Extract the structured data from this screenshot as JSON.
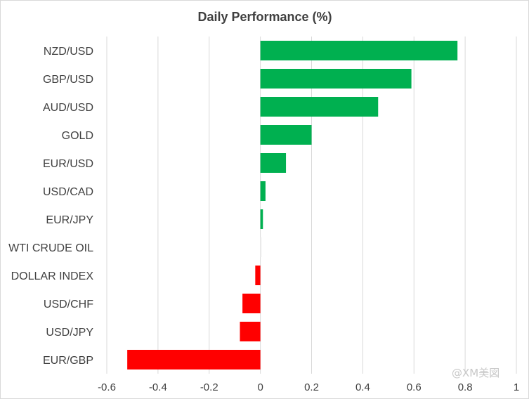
{
  "chart_data": {
    "type": "bar",
    "orientation": "horizontal",
    "title": "Daily Performance  (%)",
    "categories": [
      "NZD/USD",
      "GBP/USD",
      "AUD/USD",
      "GOLD",
      "EUR/USD",
      "USD/CAD",
      "EUR/JPY",
      "WTI CRUDE OIL",
      "DOLLAR INDEX",
      "USD/CHF",
      "USD/JPY",
      "EUR/GBP"
    ],
    "values": [
      0.77,
      0.59,
      0.46,
      0.2,
      0.1,
      0.02,
      0.01,
      0.005,
      -0.02,
      -0.07,
      -0.08,
      -0.52
    ],
    "xlim": [
      -0.6,
      1.0
    ],
    "xticks": [
      -0.6,
      -0.4,
      -0.2,
      0,
      0.2,
      0.4,
      0.6,
      0.8,
      1
    ],
    "xtick_labels": [
      "-0.6",
      "-0.4",
      "-0.2",
      "0",
      "0.2",
      "0.4",
      "0.6",
      "0.8",
      "1"
    ],
    "grid": "vertical",
    "legend": "none",
    "colors": {
      "positive": "#00b050",
      "negative": "#ff0000",
      "wti": "#f2f2f2",
      "grid": "#d9d9d9",
      "text": "#404040"
    }
  },
  "watermark": "@XM美図"
}
